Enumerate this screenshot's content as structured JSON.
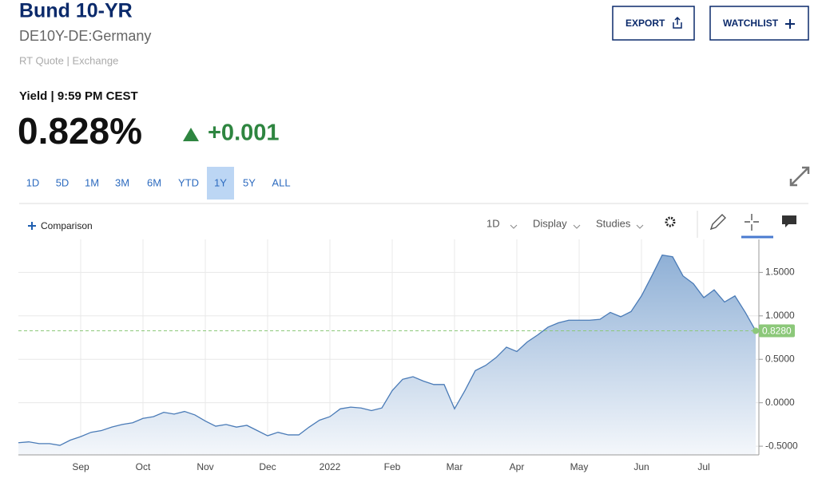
{
  "header": {
    "title": "Bund 10-YR",
    "subtitle": "DE10Y-DE:Germany",
    "source": "RT Quote | Exchange",
    "buttons": [
      "EXPORT",
      "WATCHLIST"
    ]
  },
  "quote": {
    "label": "Yield | 9:59 PM CEST",
    "value": "0.828%",
    "change": "+0.001"
  },
  "ranges": [
    "1D",
    "5D",
    "1M",
    "3M",
    "6M",
    "YTD",
    "1Y",
    "5Y",
    "ALL"
  ],
  "selected_range": "1Y",
  "toolbar": {
    "comparison": "Comparison",
    "interval": "1D",
    "display": "Display",
    "studies": "Studies"
  },
  "chart_data": {
    "type": "area",
    "color": "#4a7bb7",
    "grid": true,
    "categories": [
      null,
      null,
      null,
      null,
      null,
      null,
      "Sep",
      null,
      null,
      null,
      null,
      null,
      "Oct",
      null,
      null,
      null,
      null,
      null,
      "Nov",
      null,
      null,
      null,
      null,
      null,
      "Dec",
      null,
      null,
      null,
      null,
      null,
      "2022",
      null,
      null,
      null,
      null,
      null,
      "Feb",
      null,
      null,
      null,
      null,
      null,
      "Mar",
      null,
      null,
      null,
      null,
      null,
      "Apr",
      null,
      null,
      null,
      null,
      null,
      "May",
      null,
      null,
      null,
      null,
      null,
      "Jun",
      null,
      null,
      null,
      null,
      null,
      "Jul",
      null,
      null,
      null,
      null,
      null
    ],
    "values": [
      -0.46,
      -0.45,
      -0.47,
      -0.47,
      -0.49,
      -0.43,
      -0.39,
      -0.34,
      -0.32,
      -0.28,
      -0.25,
      -0.23,
      -0.18,
      -0.16,
      -0.11,
      -0.13,
      -0.1,
      -0.14,
      -0.21,
      -0.27,
      -0.25,
      -0.28,
      -0.26,
      -0.32,
      -0.38,
      -0.34,
      -0.37,
      -0.37,
      -0.28,
      -0.2,
      -0.16,
      -0.07,
      -0.05,
      -0.06,
      -0.09,
      -0.06,
      0.14,
      0.27,
      0.3,
      0.25,
      0.21,
      0.21,
      -0.07,
      0.14,
      0.37,
      0.43,
      0.52,
      0.64,
      0.59,
      0.7,
      0.78,
      0.87,
      0.92,
      0.95,
      0.95,
      0.95,
      0.96,
      1.04,
      0.99,
      1.05,
      1.23,
      1.46,
      1.7,
      1.68,
      1.46,
      1.37,
      1.21,
      1.3,
      1.16,
      1.23,
      1.04,
      0.828
    ],
    "ylim": [
      -0.6,
      1.88
    ],
    "yticks": [
      {
        "value": -0.5,
        "label": "-0.5000"
      },
      {
        "value": 0,
        "label": "0.0000"
      },
      {
        "value": 0.5,
        "label": "0.5000"
      },
      {
        "value": 1,
        "label": "1.0000"
      },
      {
        "value": 1.5,
        "label": "1.5000"
      }
    ],
    "last_value": 0.828,
    "last_label": "0.8280",
    "last_color": "#8cc87a"
  }
}
